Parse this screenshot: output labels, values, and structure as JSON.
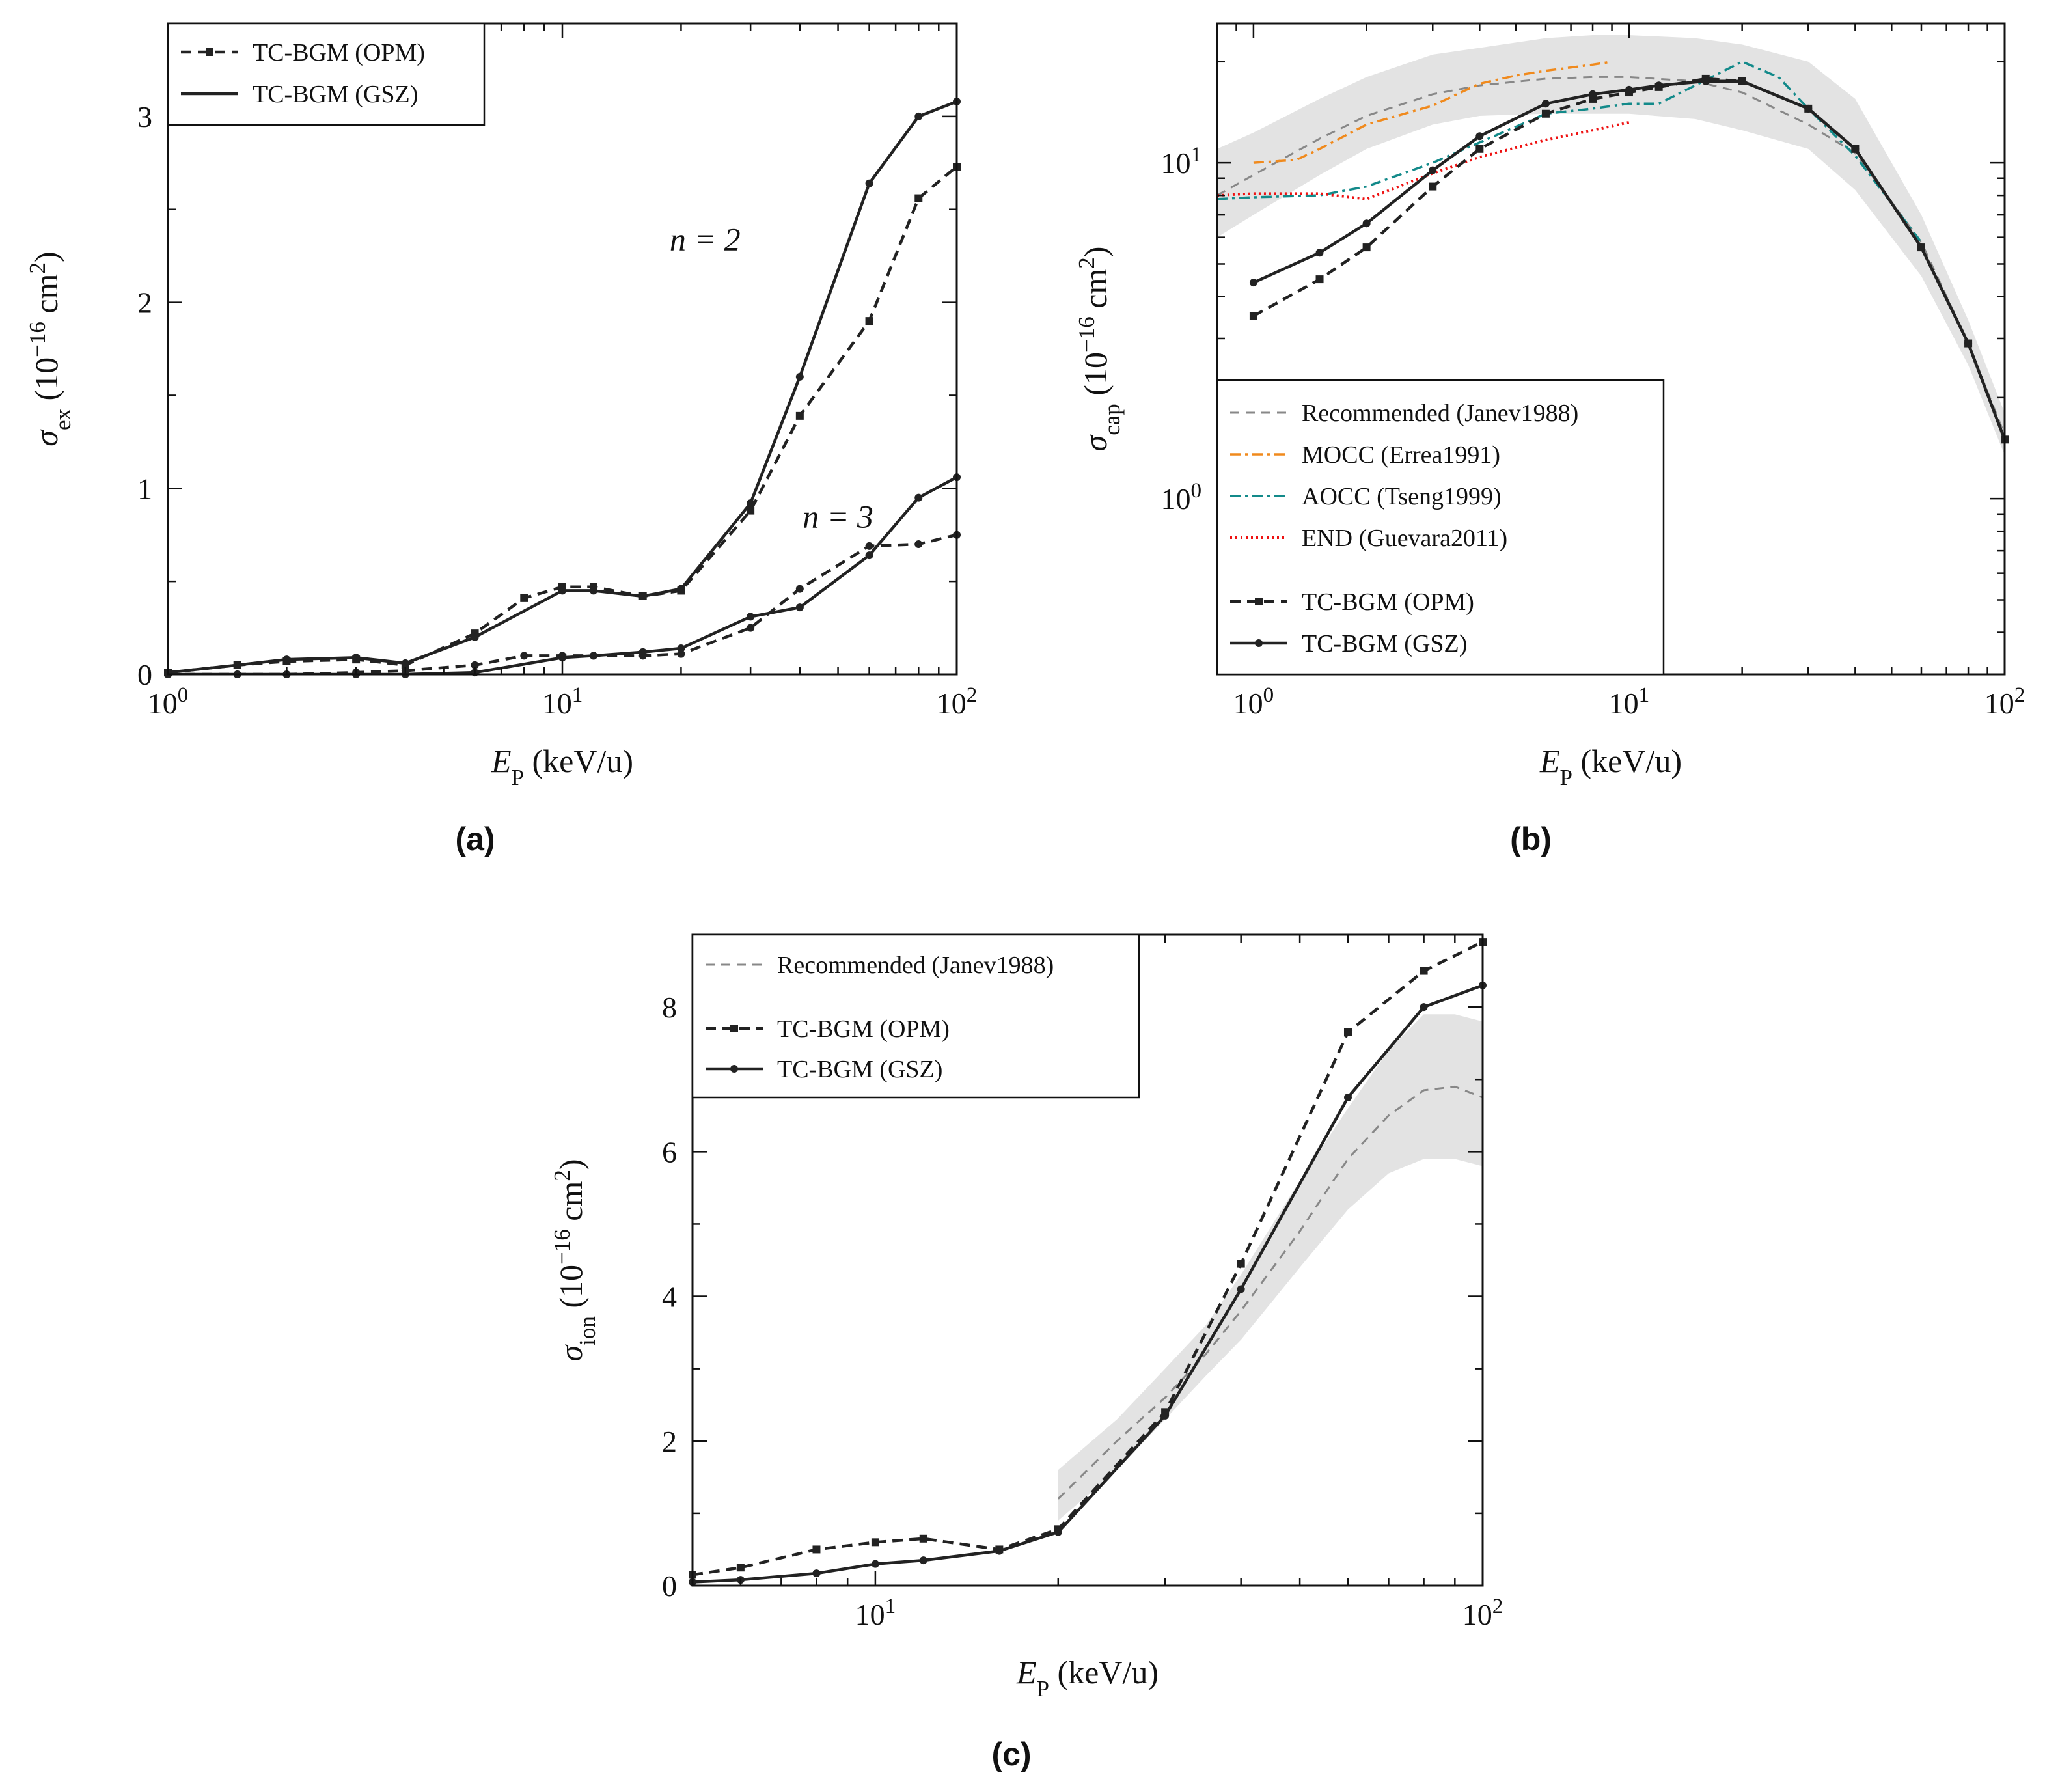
{
  "chart_data": [
    {
      "id": "a",
      "type": "line",
      "caption": "(a)",
      "xlabel": "E_P (keV/u)",
      "ylabel": "σ_ex (10^−16 cm^2)",
      "xscale": "log",
      "yscale": "linear",
      "xlim": [
        1,
        100
      ],
      "ylim": [
        0,
        3.5
      ],
      "xticks": [
        {
          "v": 1,
          "label": "10^0"
        },
        {
          "v": 10,
          "label": "10^1"
        },
        {
          "v": 100,
          "label": "10^2"
        }
      ],
      "yticks": [
        {
          "v": 0,
          "label": "0"
        },
        {
          "v": 1,
          "label": "1"
        },
        {
          "v": 2,
          "label": "2"
        },
        {
          "v": 3,
          "label": "3"
        }
      ],
      "legend": {
        "position": "top-left",
        "entries": [
          {
            "label": "TC-BGM (OPM)",
            "style": "dashed"
          },
          {
            "label": "TC-BGM (GSZ)",
            "style": "solid"
          }
        ]
      },
      "annotations": [
        {
          "text": "n = 2",
          "x": 23,
          "y": 2.28
        },
        {
          "text": "n = 3",
          "x": 50,
          "y": 0.79
        }
      ],
      "series": [
        {
          "name": "TC-BGM (OPM) n=2",
          "style": "dashed",
          "marker": "square",
          "color": "#222222",
          "x": [
            1,
            1.5,
            2,
            3,
            4,
            6,
            8,
            10,
            12,
            16,
            20,
            30,
            40,
            60,
            80,
            100
          ],
          "y": [
            0.01,
            0.05,
            0.07,
            0.08,
            0.05,
            0.22,
            0.41,
            0.47,
            0.47,
            0.42,
            0.45,
            0.88,
            1.39,
            1.9,
            2.56,
            2.73
          ]
        },
        {
          "name": "TC-BGM (GSZ) n=2",
          "style": "solid",
          "marker": "circle",
          "color": "#222222",
          "x": [
            1,
            1.5,
            2,
            3,
            4,
            6,
            10,
            12,
            16,
            20,
            30,
            40,
            60,
            80,
            100
          ],
          "y": [
            0.01,
            0.05,
            0.08,
            0.09,
            0.06,
            0.2,
            0.45,
            0.45,
            0.42,
            0.46,
            0.92,
            1.6,
            2.64,
            3.0,
            3.08
          ]
        },
        {
          "name": "TC-BGM (OPM) n=3",
          "style": "dashed",
          "marker": "circle",
          "color": "#222222",
          "x": [
            1,
            1.5,
            2,
            3,
            4,
            6,
            8,
            10,
            12,
            16,
            20,
            30,
            40,
            60,
            80,
            100
          ],
          "y": [
            0.0,
            0.0,
            0.0,
            0.01,
            0.02,
            0.05,
            0.1,
            0.1,
            0.1,
            0.1,
            0.11,
            0.25,
            0.46,
            0.69,
            0.7,
            0.75
          ]
        },
        {
          "name": "TC-BGM (GSZ) n=3",
          "style": "solid",
          "marker": "circle",
          "color": "#222222",
          "x": [
            1,
            1.5,
            2,
            3,
            4,
            6,
            10,
            12,
            16,
            20,
            30,
            40,
            60,
            80,
            100
          ],
          "y": [
            0.0,
            0.0,
            0.0,
            0.0,
            0.0,
            0.01,
            0.09,
            0.1,
            0.12,
            0.14,
            0.31,
            0.36,
            0.64,
            0.95,
            1.06
          ]
        }
      ]
    },
    {
      "id": "b",
      "type": "line",
      "caption": "(b)",
      "xlabel": "E_P (keV/u)",
      "ylabel": "σ_cap (10^−16 cm^2)",
      "xscale": "log",
      "yscale": "log",
      "xlim": [
        0.8,
        100
      ],
      "ylim": [
        0.3,
        26
      ],
      "xticks": [
        {
          "v": 1,
          "label": "10^0"
        },
        {
          "v": 10,
          "label": "10^1"
        },
        {
          "v": 100,
          "label": "10^2"
        }
      ],
      "yticks": [
        {
          "v": 1,
          "label": "10^0"
        },
        {
          "v": 10,
          "label": "10^1"
        }
      ],
      "legend": {
        "position": "bottom-left",
        "entries": [
          {
            "label": "Recommended (Janev1988)",
            "style": "dashed-thin",
            "color": "#888888"
          },
          {
            "label": "MOCC (Errea1991)",
            "style": "dashdot",
            "color": "#f08a1d"
          },
          {
            "label": "AOCC (Tseng1999)",
            "style": "dashdot",
            "color": "#138a8a"
          },
          {
            "label": "END (Guevara2011)",
            "style": "dotted",
            "color": "#ee1111"
          },
          {
            "label": "TC-BGM (OPM)",
            "style": "dashed",
            "color": "#222222"
          },
          {
            "label": "TC-BGM (GSZ)",
            "style": "solid",
            "color": "#222222"
          }
        ]
      },
      "band": {
        "x": [
          0.8,
          1,
          1.5,
          2,
          3,
          4,
          6,
          8,
          10,
          15,
          20,
          30,
          40,
          60,
          80,
          100
        ],
        "lower": [
          6.0,
          7.0,
          9.2,
          11.0,
          13.0,
          13.8,
          14.0,
          14.0,
          14.0,
          13.5,
          12.5,
          11.0,
          8.3,
          4.6,
          2.5,
          1.35
        ],
        "upper": [
          11.0,
          12.3,
          15.5,
          18.0,
          21.0,
          22.0,
          23.5,
          24.0,
          24.0,
          23.5,
          22.5,
          20.0,
          15.5,
          7.0,
          3.4,
          1.8
        ]
      },
      "series": [
        {
          "name": "Recommended (Janev1988)",
          "style": "dashed-thin",
          "color": "#888888",
          "x": [
            0.8,
            1,
            1.5,
            2,
            3,
            4,
            6,
            8,
            10,
            15,
            20,
            30,
            40,
            60,
            80,
            100
          ],
          "y": [
            8.0,
            9.2,
            11.8,
            13.8,
            16.0,
            17.0,
            17.8,
            18.0,
            18.0,
            17.5,
            16.2,
            13.0,
            10.7,
            5.8,
            2.9,
            1.55
          ]
        },
        {
          "name": "MOCC (Errea1991)",
          "style": "dashdot",
          "color": "#f08a1d",
          "x": [
            1,
            1.3,
            1.5,
            2,
            3,
            4,
            5,
            6,
            8,
            9
          ],
          "y": [
            10.0,
            10.2,
            11.0,
            13.0,
            14.8,
            17.2,
            18.2,
            18.8,
            19.6,
            20.0
          ]
        },
        {
          "name": "AOCC (Tseng1999)",
          "style": "dashdot",
          "color": "#138a8a",
          "x": [
            0.8,
            1,
            1.5,
            2,
            3,
            4,
            6,
            8,
            10,
            12,
            15,
            20,
            25,
            30,
            40,
            60
          ],
          "y": [
            7.8,
            7.9,
            8.0,
            8.5,
            10.0,
            11.5,
            14.0,
            14.5,
            15.0,
            15.0,
            17.0,
            20.0,
            18.0,
            14.5,
            10.5,
            5.8
          ]
        },
        {
          "name": "END (Guevara2011)",
          "style": "dotted",
          "color": "#ee1111",
          "x": [
            0.8,
            1,
            1.5,
            2,
            3,
            4,
            6,
            8,
            10
          ],
          "y": [
            8.0,
            8.1,
            8.1,
            7.8,
            9.3,
            10.4,
            11.7,
            12.5,
            13.2
          ]
        },
        {
          "name": "TC-BGM (OPM)",
          "style": "dashed",
          "marker": "square",
          "color": "#222222",
          "x": [
            1,
            1.5,
            2,
            3,
            4,
            6,
            8,
            10,
            12,
            16,
            20,
            30,
            40,
            60,
            80,
            100
          ],
          "y": [
            3.5,
            4.5,
            5.6,
            8.5,
            11.0,
            14.0,
            15.5,
            16.2,
            16.8,
            17.8,
            17.5,
            14.5,
            11.0,
            5.6,
            2.9,
            1.5
          ]
        },
        {
          "name": "TC-BGM (GSZ)",
          "style": "solid",
          "marker": "circle",
          "color": "#222222",
          "x": [
            1,
            1.5,
            2,
            3,
            4,
            6,
            8,
            10,
            12,
            16,
            20,
            30,
            40,
            60,
            80,
            100
          ],
          "y": [
            4.4,
            5.4,
            6.6,
            9.5,
            12.0,
            15.0,
            16.0,
            16.5,
            17.0,
            17.5,
            17.5,
            14.5,
            11.0,
            5.6,
            2.9,
            1.5
          ]
        }
      ]
    },
    {
      "id": "c",
      "type": "line",
      "caption": "(c)",
      "xlabel": "E_P (keV/u)",
      "ylabel": "σ_ion (10^−16 cm^2)",
      "xscale": "log",
      "yscale": "linear",
      "xlim": [
        5,
        100
      ],
      "ylim": [
        0,
        9
      ],
      "xticks": [
        {
          "v": 10,
          "label": "10^1"
        },
        {
          "v": 100,
          "label": "10^2"
        }
      ],
      "yticks": [
        {
          "v": 0,
          "label": "0"
        },
        {
          "v": 2,
          "label": "2"
        },
        {
          "v": 4,
          "label": "4"
        },
        {
          "v": 6,
          "label": "6"
        },
        {
          "v": 8,
          "label": "8"
        }
      ],
      "legend": {
        "position": "top-left",
        "entries": [
          {
            "label": "Recommended (Janev1988)",
            "style": "dashed-thin",
            "color": "#888888"
          },
          {
            "label": "TC-BGM (OPM)",
            "style": "dashed",
            "color": "#222222"
          },
          {
            "label": "TC-BGM (GSZ)",
            "style": "solid",
            "color": "#222222"
          }
        ]
      },
      "band": {
        "x": [
          20,
          25,
          30,
          35,
          40,
          50,
          60,
          70,
          80,
          90,
          100
        ],
        "lower": [
          0.9,
          1.6,
          2.3,
          2.9,
          3.4,
          4.4,
          5.2,
          5.7,
          5.9,
          5.9,
          5.8
        ],
        "upper": [
          1.6,
          2.3,
          3.0,
          3.6,
          4.3,
          5.6,
          6.6,
          7.4,
          7.9,
          7.9,
          7.8
        ]
      },
      "series": [
        {
          "name": "Recommended (Janev1988)",
          "style": "dashed-thin",
          "color": "#888888",
          "x": [
            20,
            25,
            30,
            35,
            40,
            50,
            60,
            70,
            80,
            90,
            100
          ],
          "y": [
            1.2,
            2.0,
            2.6,
            3.2,
            3.8,
            4.9,
            5.9,
            6.5,
            6.85,
            6.9,
            6.75
          ]
        },
        {
          "name": "TC-BGM (OPM)",
          "style": "dashed",
          "marker": "square",
          "color": "#222222",
          "x": [
            5,
            6,
            8,
            10,
            12,
            16,
            20,
            30,
            40,
            60,
            80,
            100
          ],
          "y": [
            0.15,
            0.25,
            0.5,
            0.6,
            0.65,
            0.5,
            0.78,
            2.4,
            4.45,
            7.65,
            8.5,
            8.9
          ]
        },
        {
          "name": "TC-BGM (GSZ)",
          "style": "solid",
          "marker": "circle",
          "color": "#222222",
          "x": [
            5,
            6,
            8,
            10,
            12,
            16,
            20,
            30,
            40,
            60,
            80,
            100
          ],
          "y": [
            0.05,
            0.08,
            0.17,
            0.3,
            0.35,
            0.48,
            0.74,
            2.35,
            4.1,
            6.75,
            8.0,
            8.3
          ]
        }
      ]
    }
  ]
}
